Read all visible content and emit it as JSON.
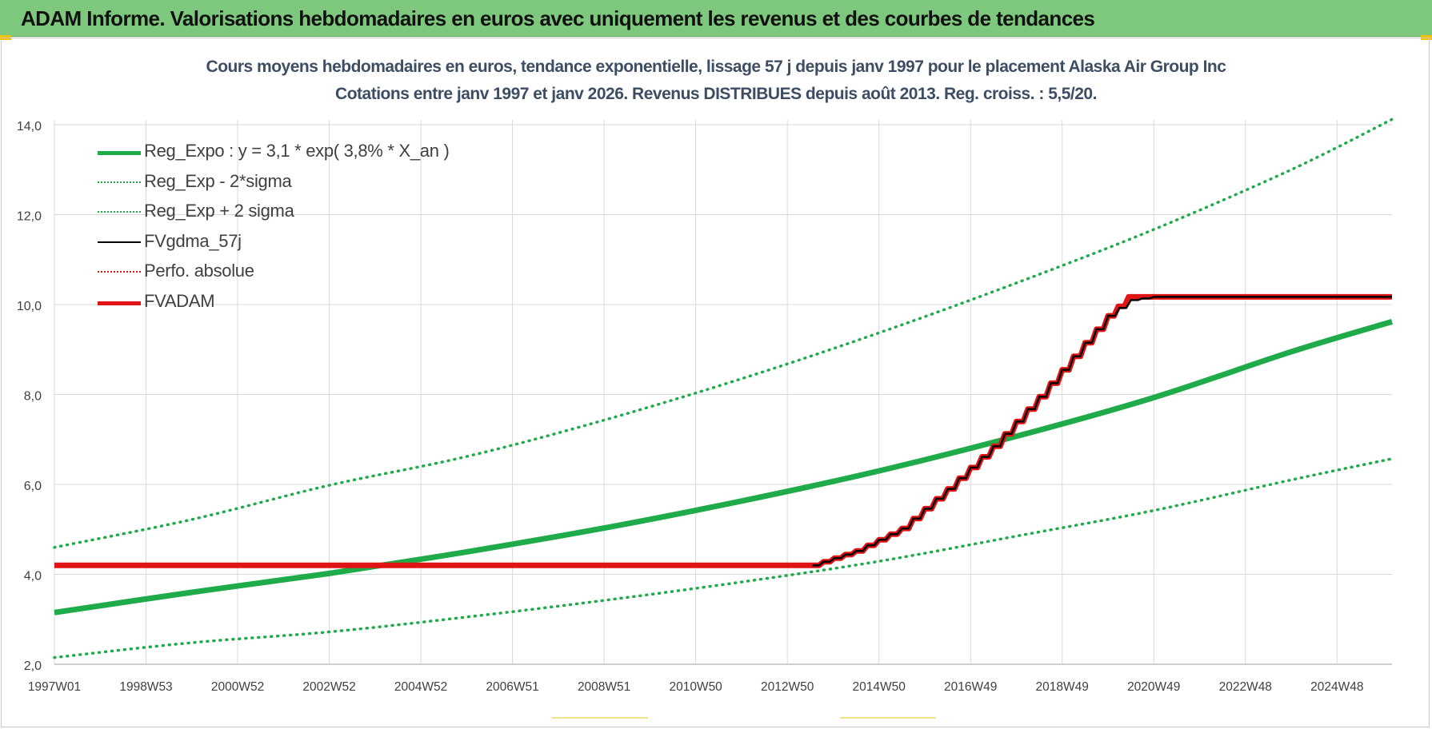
{
  "header": {
    "title": "ADAM Informe. Valorisations hebdomadaires en euros avec uniquement les revenus et des courbes de tendances"
  },
  "colors": {
    "banner": "#7dc87d",
    "trend": "#1fab4a",
    "band": "#1fab4a",
    "fvgdma": "#000000",
    "perfo": "#d91515",
    "fvadam": "#e01414",
    "grid": "#d9d9d9"
  },
  "chart_data": {
    "type": "line",
    "title": "Cours moyens hebdomadaires en euros, tendance exponentielle, lissage 57 j depuis janv 1997  pour le placement Alaska Air Group Inc",
    "subtitle": "Cotations entre janv 1997 et janv 2026. Revenus DISTRIBUES depuis août 2013. Reg. croiss. : 5,5/20.",
    "xlabel": "",
    "ylabel": "",
    "x_ticks": [
      "1997W01",
      "1998W53",
      "2000W52",
      "2002W52",
      "2004W52",
      "2006W51",
      "2008W51",
      "2010W50",
      "2012W50",
      "2014W50",
      "2016W49",
      "2018W49",
      "2020W49",
      "2022W48",
      "2024W48"
    ],
    "x_tick_years": [
      1997.0,
      1999.0,
      2001.0,
      2003.0,
      2005.0,
      2007.0,
      2009.0,
      2011.0,
      2013.0,
      2015.0,
      2017.0,
      2019.0,
      2021.0,
      2023.0,
      2025.0
    ],
    "xlim": [
      1997.0,
      2026.2
    ],
    "ylim": [
      2.0,
      15.0
    ],
    "y_ticks": [
      "2,0",
      "4,0",
      "6,0",
      "8,0",
      "10,0",
      "12,0",
      "14,0"
    ],
    "y_tick_values": [
      2,
      4,
      6,
      8,
      10,
      12,
      14
    ],
    "grid": true,
    "legend_position": "top-left",
    "series": [
      {
        "name": "Reg_Expo : y = 3,1 * exp( 3,8% *  X_an )",
        "style": "solid-thick",
        "color": "#1fab4a",
        "points": [
          [
            1997.0,
            3.15
          ],
          [
            2000.0,
            3.6
          ],
          [
            2003.0,
            4.02
          ],
          [
            2006.0,
            4.5
          ],
          [
            2009.0,
            5.03
          ],
          [
            2012.0,
            5.63
          ],
          [
            2015.0,
            6.3
          ],
          [
            2018.0,
            7.07
          ],
          [
            2021.0,
            7.93
          ],
          [
            2024.0,
            8.95
          ],
          [
            2026.2,
            9.62
          ]
        ]
      },
      {
        "name": "Reg_Exp - 2*sigma",
        "style": "dotted",
        "color": "#1fab4a",
        "points": [
          [
            1997.0,
            2.15
          ],
          [
            2000.0,
            2.48
          ],
          [
            2003.0,
            2.72
          ],
          [
            2006.0,
            3.05
          ],
          [
            2009.0,
            3.42
          ],
          [
            2012.0,
            3.83
          ],
          [
            2015.0,
            4.29
          ],
          [
            2018.0,
            4.85
          ],
          [
            2021.0,
            5.42
          ],
          [
            2024.0,
            6.1
          ],
          [
            2026.2,
            6.57
          ]
        ]
      },
      {
        "name": "Reg_Exp + 2 sigma",
        "style": "dotted",
        "color": "#1fab4a",
        "points": [
          [
            1997.0,
            4.6
          ],
          [
            2000.0,
            5.22
          ],
          [
            2003.0,
            5.98
          ],
          [
            2006.0,
            6.62
          ],
          [
            2009.0,
            7.43
          ],
          [
            2012.0,
            8.35
          ],
          [
            2015.0,
            9.37
          ],
          [
            2018.0,
            10.48
          ],
          [
            2021.0,
            11.67
          ],
          [
            2024.0,
            13.0
          ],
          [
            2026.2,
            14.12
          ]
        ]
      },
      {
        "name": "FVgdma_57j",
        "style": "solid-thin",
        "color": "#000000",
        "points": [
          [
            2013.55,
            4.2
          ],
          [
            2014.5,
            4.52
          ],
          [
            2015.5,
            5.02
          ],
          [
            2016.5,
            5.9
          ],
          [
            2017.5,
            6.85
          ],
          [
            2018.5,
            7.95
          ],
          [
            2019.5,
            9.15
          ],
          [
            2020.0,
            9.75
          ],
          [
            2020.5,
            10.1
          ],
          [
            2021.0,
            10.17
          ],
          [
            2026.2,
            10.17
          ]
        ]
      },
      {
        "name": "Perfo. absolue",
        "style": "dotted",
        "color": "#d91515",
        "points": []
      },
      {
        "name": "FVADAM",
        "style": "solid-thick",
        "color": "#e01414",
        "points": [
          [
            1997.0,
            4.2
          ],
          [
            2013.55,
            4.2
          ],
          [
            2014.5,
            4.52
          ],
          [
            2015.5,
            5.02
          ],
          [
            2016.5,
            5.9
          ],
          [
            2017.5,
            6.85
          ],
          [
            2018.5,
            7.95
          ],
          [
            2019.5,
            9.15
          ],
          [
            2020.0,
            9.75
          ],
          [
            2020.45,
            10.17
          ],
          [
            2026.2,
            10.17
          ]
        ]
      }
    ]
  }
}
